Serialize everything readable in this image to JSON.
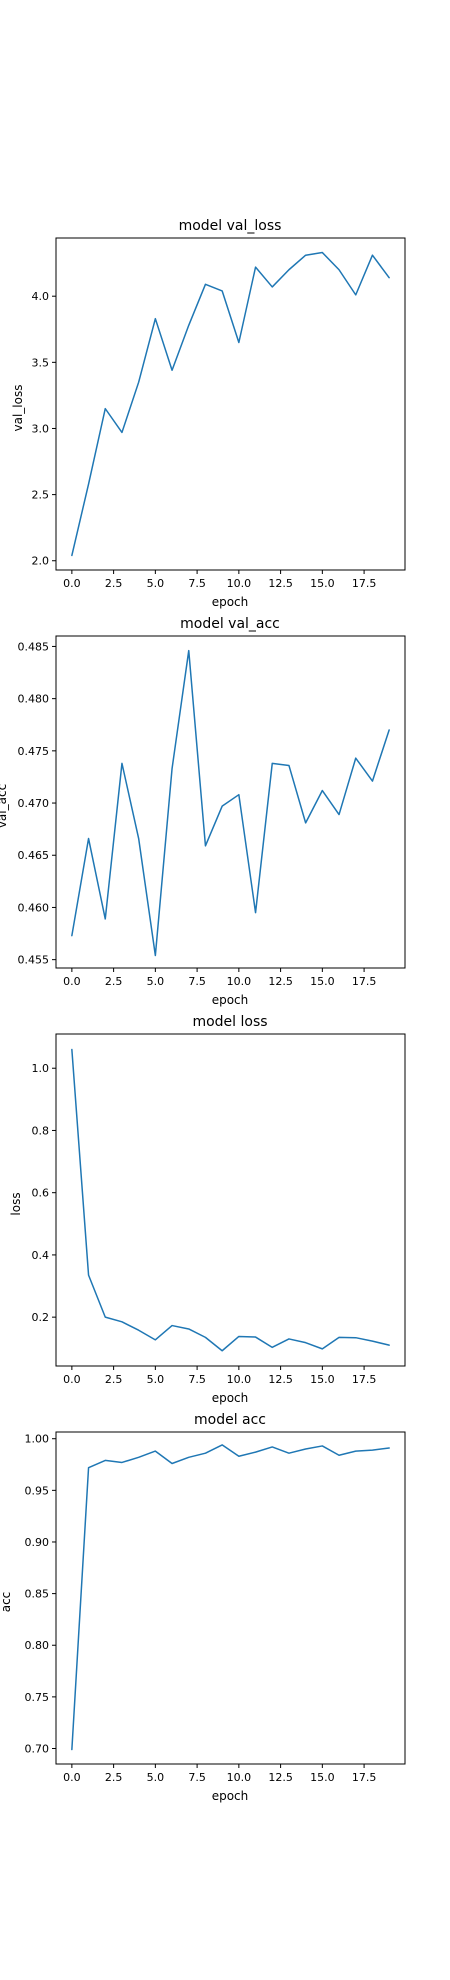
{
  "chart_data": [
    {
      "type": "line",
      "title": "model val_loss",
      "xlabel": "epoch",
      "ylabel": "val_loss",
      "xlim": [
        -0.95,
        19.95
      ],
      "ylim": [
        1.93,
        4.44
      ],
      "xticks": [
        "0.0",
        "2.5",
        "5.0",
        "7.5",
        "10.0",
        "12.5",
        "15.0",
        "17.5"
      ],
      "yticks": [
        "2.0",
        "2.5",
        "3.0",
        "3.5",
        "4.0"
      ],
      "grid": false,
      "color": "#1f77b4",
      "series": [
        {
          "x": [
            0,
            1,
            2,
            3,
            4,
            5,
            6,
            7,
            8,
            9,
            10,
            11,
            12,
            13,
            14,
            15,
            16,
            17,
            18,
            19
          ],
          "values": [
            2.04,
            2.58,
            3.15,
            2.97,
            3.35,
            3.83,
            3.44,
            3.78,
            4.09,
            4.04,
            3.65,
            4.22,
            4.07,
            4.2,
            4.31,
            4.33,
            4.2,
            4.01,
            4.31,
            4.14
          ]
        }
      ]
    },
    {
      "type": "line",
      "title": "model val_acc",
      "xlabel": "epoch",
      "ylabel": "val_acc",
      "xlim": [
        -0.95,
        19.95
      ],
      "ylim": [
        0.4542,
        0.486
      ],
      "xticks": [
        "0.0",
        "2.5",
        "5.0",
        "7.5",
        "10.0",
        "12.5",
        "15.0",
        "17.5"
      ],
      "yticks": [
        "0.455",
        "0.460",
        "0.465",
        "0.470",
        "0.475",
        "0.480",
        "0.485"
      ],
      "grid": false,
      "color": "#1f77b4",
      "series": [
        {
          "x": [
            0,
            1,
            2,
            3,
            4,
            5,
            6,
            7,
            8,
            9,
            10,
            11,
            12,
            13,
            14,
            15,
            16,
            17,
            18,
            19
          ],
          "values": [
            0.4573,
            0.4666,
            0.4589,
            0.4738,
            0.4666,
            0.4554,
            0.4733,
            0.4846,
            0.4659,
            0.4697,
            0.4708,
            0.4595,
            0.4738,
            0.4736,
            0.4681,
            0.4712,
            0.4689,
            0.4743,
            0.4721,
            0.477
          ]
        }
      ]
    },
    {
      "type": "line",
      "title": "model loss",
      "xlabel": "epoch",
      "ylabel": "loss",
      "xlim": [
        -0.95,
        19.95
      ],
      "ylim": [
        0.043,
        1.11
      ],
      "xticks": [
        "0.0",
        "2.5",
        "5.0",
        "7.5",
        "10.0",
        "12.5",
        "15.0",
        "17.5"
      ],
      "yticks": [
        "0.2",
        "0.4",
        "0.6",
        "0.8",
        "1.0"
      ],
      "grid": false,
      "color": "#1f77b4",
      "series": [
        {
          "x": [
            0,
            1,
            2,
            3,
            4,
            5,
            6,
            7,
            8,
            9,
            10,
            11,
            12,
            13,
            14,
            15,
            16,
            17,
            18,
            19
          ],
          "values": [
            1.06,
            0.335,
            0.2,
            0.185,
            0.158,
            0.127,
            0.173,
            0.162,
            0.135,
            0.092,
            0.138,
            0.136,
            0.103,
            0.13,
            0.118,
            0.098,
            0.135,
            0.134,
            0.123,
            0.11
          ]
        }
      ]
    },
    {
      "type": "line",
      "title": "model acc",
      "xlabel": "epoch",
      "ylabel": "acc",
      "xlim": [
        -0.95,
        19.95
      ],
      "ylim": [
        0.685,
        1.0065
      ],
      "xticks": [
        "0.0",
        "2.5",
        "5.0",
        "7.5",
        "10.0",
        "12.5",
        "15.0",
        "17.5"
      ],
      "yticks": [
        "0.70",
        "0.75",
        "0.80",
        "0.85",
        "0.90",
        "0.95",
        "1.00"
      ],
      "grid": false,
      "color": "#1f77b4",
      "series": [
        {
          "x": [
            0,
            1,
            2,
            3,
            4,
            5,
            6,
            7,
            8,
            9,
            10,
            11,
            12,
            13,
            14,
            15,
            16,
            17,
            18,
            19
          ],
          "values": [
            0.699,
            0.972,
            0.979,
            0.977,
            0.982,
            0.988,
            0.976,
            0.982,
            0.986,
            0.994,
            0.983,
            0.987,
            0.992,
            0.986,
            0.99,
            0.993,
            0.984,
            0.988,
            0.989,
            0.991
          ]
        }
      ]
    }
  ]
}
